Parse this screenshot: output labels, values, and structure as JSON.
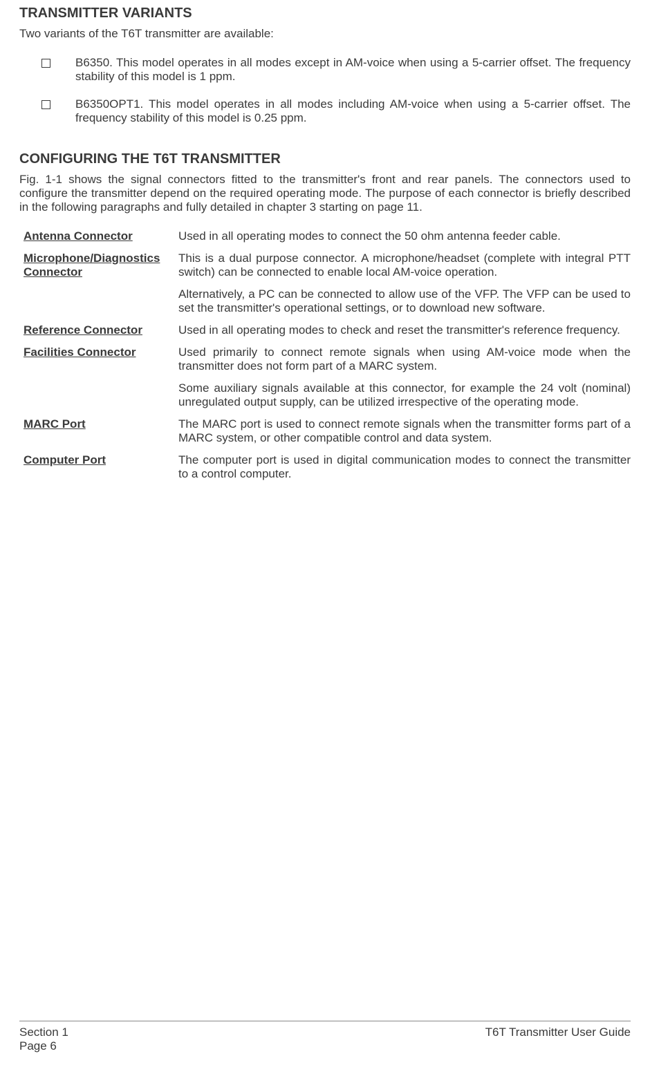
{
  "section1": {
    "heading": "TRANSMITTER VARIANTS",
    "intro": "Two variants of the T6T transmitter are available:",
    "bullets": [
      "B6350.  This model operates in all modes except in AM-voice when using a 5-carrier offset. The frequency stability of this model is 1 ppm.",
      "B6350OPT1.  This model operates in all modes including AM-voice when using a 5-carrier offset. The frequency stability of this model is 0.25 ppm."
    ]
  },
  "section2": {
    "heading": "CONFIGURING THE T6T TRANSMITTER",
    "body": "Fig. 1-1 shows the signal connectors fitted to the transmitter's front and rear panels. The connectors used to configure the transmitter depend on the required operating mode. The purpose of each connector is briefly described in the following paragraphs and fully detailed in chapter 3 starting on page 11.",
    "connectors": [
      {
        "label": "Antenna Connector",
        "desc": [
          "Used in all operating modes to connect the 50 ohm antenna feeder cable."
        ]
      },
      {
        "label": "Microphone/Diagnostics  Connector",
        "desc": [
          "This is a dual purpose connector. A microphone/headset (complete with integral PTT switch) can be connected to enable local AM-voice operation.",
          "Alternatively, a PC can be connected to allow use of the VFP. The VFP can be used to set the transmitter's operational settings, or to download new software."
        ]
      },
      {
        "label": "Reference Connector",
        "desc": [
          "Used in all operating modes to check and reset the transmitter's reference frequency."
        ]
      },
      {
        "label": "Facilities Connector",
        "desc": [
          "Used primarily to connect remote signals when using AM-voice mode when the transmitter does not form part of a MARC system.",
          "Some auxiliary signals available at this connector, for example the 24 volt (nominal) unregulated output supply, can be utilized irrespective of the operating mode."
        ]
      },
      {
        "label": "MARC Port",
        "desc": [
          "The MARC port is used to connect remote signals when the transmitter forms part of a MARC system, or other compatible control and data system."
        ]
      },
      {
        "label": "Computer Port",
        "desc": [
          "The computer port is used in digital communication modes to connect the transmitter to a control computer."
        ]
      }
    ]
  },
  "footer": {
    "left_line1": "Section 1",
    "left_line2": "Page 6",
    "right": "T6T Transmitter User Guide"
  }
}
